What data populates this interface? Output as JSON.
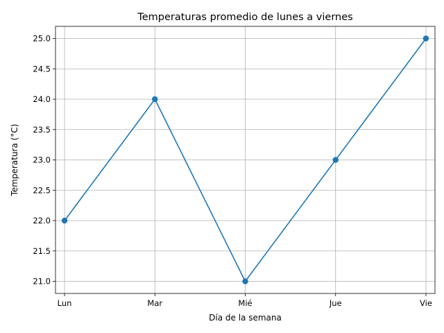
{
  "chart_data": {
    "type": "line",
    "title": "Temperaturas promedio de lunes a viernes",
    "xlabel": "Día de la semana",
    "ylabel": "Temperatura (°C)",
    "categories": [
      "Lun",
      "Mar",
      "Mié",
      "Jue",
      "Vie"
    ],
    "series": [
      {
        "values": [
          22,
          24,
          21,
          23,
          25
        ],
        "color": "#1f77b4",
        "marker": "circle"
      }
    ],
    "ylim": [
      20.8,
      25.2
    ],
    "yticks": [
      "21.0",
      "21.5",
      "22.0",
      "22.5",
      "23.0",
      "23.5",
      "24.0",
      "24.5",
      "25.0"
    ],
    "grid": true,
    "legend": false
  }
}
